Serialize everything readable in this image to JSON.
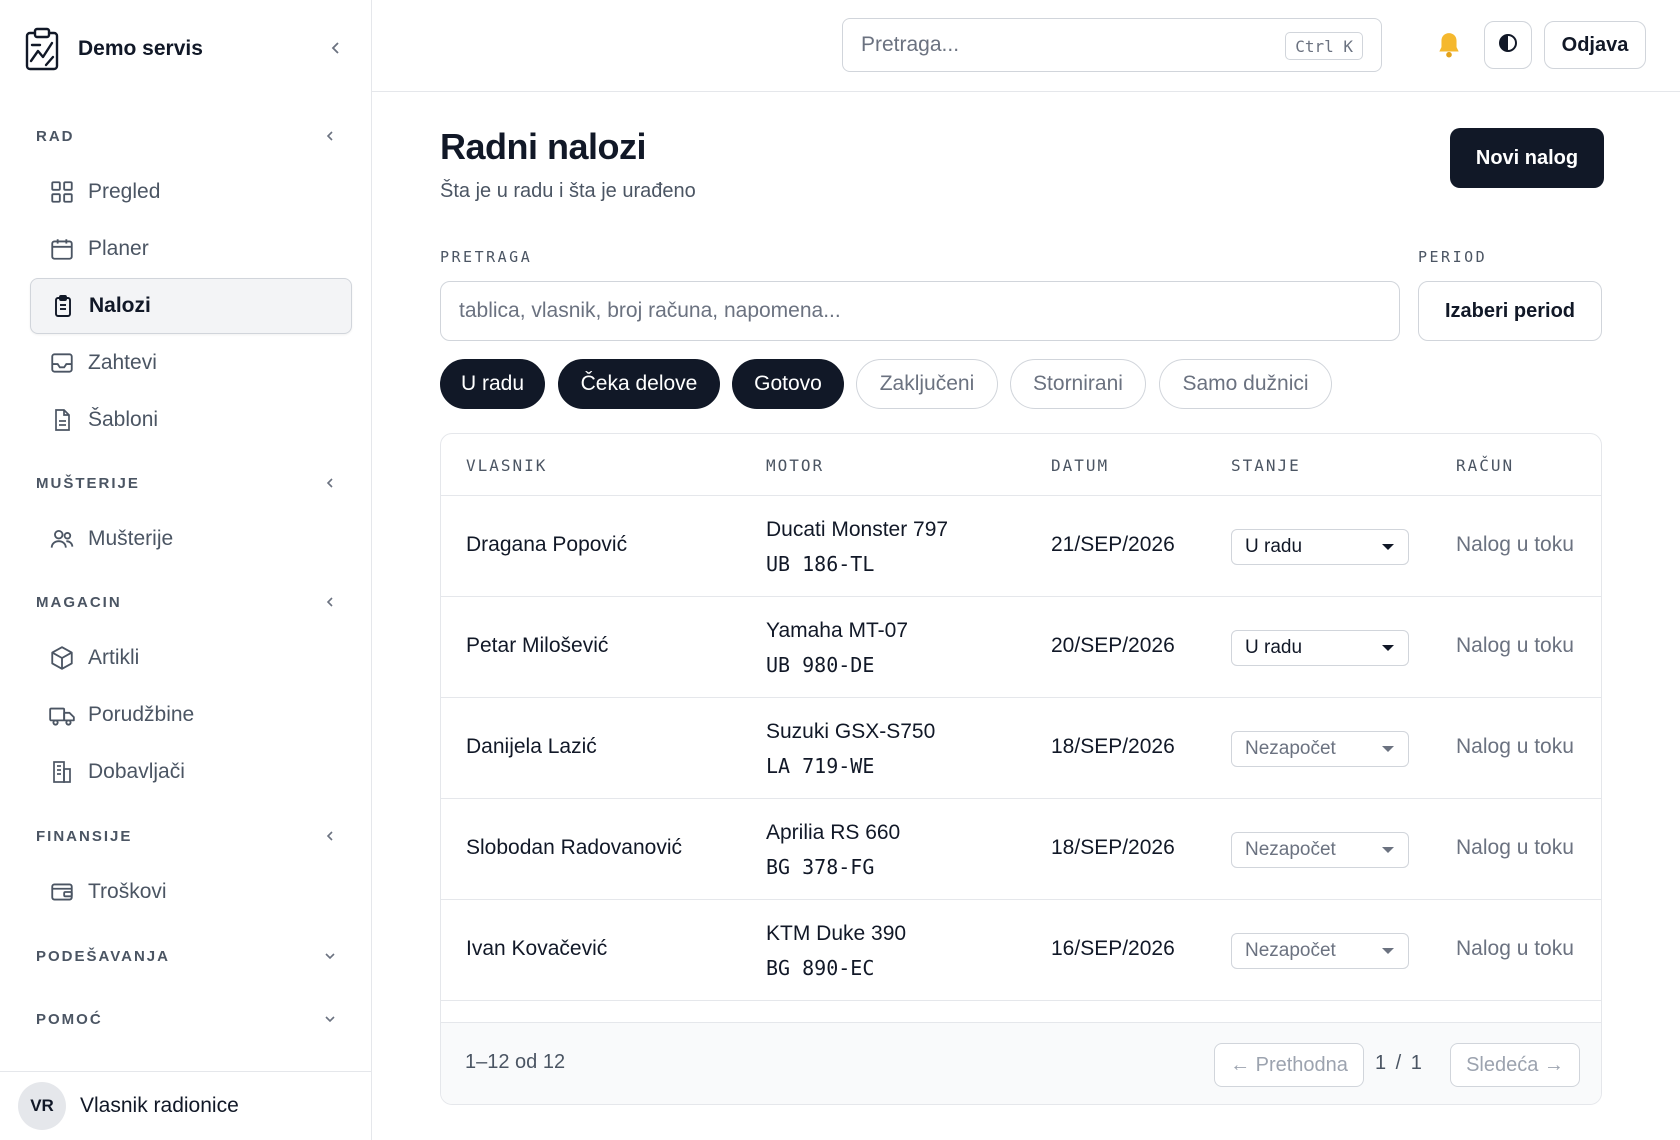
{
  "sidebar": {
    "brand": "Demo servis",
    "sections": [
      {
        "label": "RAD",
        "items": [
          "Pregled",
          "Planer",
          "Nalozi",
          "Zahtevi",
          "Šabloni"
        ]
      },
      {
        "label": "MUŠTERIJE",
        "items": [
          "Mušterije"
        ]
      },
      {
        "label": "MAGACIN",
        "items": [
          "Artikli",
          "Porudžbine",
          "Dobavljači"
        ]
      },
      {
        "label": "FINANSIJE",
        "items": [
          "Troškovi"
        ]
      },
      {
        "label": "PODEŠAVANJA",
        "items": []
      },
      {
        "label": "POMOĆ",
        "items": []
      }
    ],
    "active_item": "Nalozi",
    "user": {
      "initials": "VR",
      "name": "Vlasnik radionice"
    }
  },
  "topbar": {
    "search_placeholder": "Pretraga...",
    "shortcut": "Ctrl K",
    "logout_label": "Odjava"
  },
  "page": {
    "title": "Radni nalozi",
    "subtitle": "Šta je u radu i šta je urađeno",
    "new_button": "Novi nalog",
    "search_label": "PRETRAGA",
    "search_placeholder": "tablica, vlasnik, broj računa, napomena...",
    "period_label": "PERIOD",
    "period_button": "Izaberi period",
    "filters": [
      {
        "label": "U radu",
        "active": true
      },
      {
        "label": "Čeka delove",
        "active": true
      },
      {
        "label": "Gotovo",
        "active": true
      },
      {
        "label": "Zaključeni",
        "active": false
      },
      {
        "label": "Stornirani",
        "active": false
      },
      {
        "label": "Samo dužnici",
        "active": false
      }
    ]
  },
  "table": {
    "columns": [
      "VLASNIK",
      "MOTOR",
      "DATUM",
      "STANJE",
      "RAČUN"
    ],
    "rows": [
      {
        "owner": "Dragana Popović",
        "motor": "Ducati Monster 797",
        "plate": "UB 186-TL",
        "date": "21/SEP/2026",
        "status": "U radu",
        "invoice": "Nalog u toku"
      },
      {
        "owner": "Petar Milošević",
        "motor": "Yamaha MT-07",
        "plate": "UB 980-DE",
        "date": "20/SEP/2026",
        "status": "U radu",
        "invoice": "Nalog u toku"
      },
      {
        "owner": "Danijela Lazić",
        "motor": "Suzuki GSX-S750",
        "plate": "LA 719-WE",
        "date": "18/SEP/2026",
        "status": "Nezapočet",
        "invoice": "Nalog u toku"
      },
      {
        "owner": "Slobodan Radovanović",
        "motor": "Aprilia RS 660",
        "plate": "BG 378-FG",
        "date": "18/SEP/2026",
        "status": "Nezapočet",
        "invoice": "Nalog u toku"
      },
      {
        "owner": "Ivan Kovačević",
        "motor": "KTM Duke 390",
        "plate": "BG 890-EC",
        "date": "16/SEP/2026",
        "status": "Nezapočet",
        "invoice": "Nalog u toku"
      }
    ],
    "footer": {
      "range": "1–12 od 12",
      "prev": "← Prethodna",
      "page_info": "1 / 1",
      "next": "Sledeća →"
    }
  },
  "colors": {
    "primary": "#111827",
    "border": "#d1d5db",
    "muted": "#6b7280",
    "bell": "#f5b82e"
  }
}
